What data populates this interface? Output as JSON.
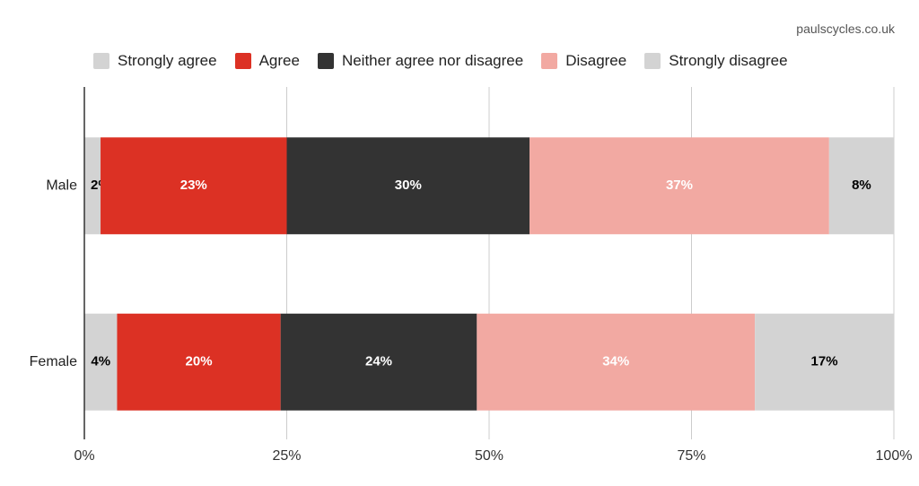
{
  "credit": "paulscycles.co.uk",
  "chart_data": {
    "type": "bar",
    "orientation": "horizontal",
    "stacked": "percent",
    "categories": [
      "Male",
      "Female"
    ],
    "series": [
      {
        "name": "Strongly agree",
        "color": "#d3d3d3",
        "label_color": "#000000",
        "values": [
          2,
          4
        ],
        "labels": [
          "2%",
          "4%"
        ]
      },
      {
        "name": "Agree",
        "color": "#dc3124",
        "label_color": "#ffffff",
        "values": [
          23,
          20
        ],
        "labels": [
          "23%",
          "20%"
        ]
      },
      {
        "name": "Neither agree nor disagree",
        "color": "#333333",
        "label_color": "#ffffff",
        "values": [
          30,
          24
        ],
        "labels": [
          "30%",
          "24%"
        ]
      },
      {
        "name": "Disagree",
        "color": "#f2a9a2",
        "label_color": "#ffffff",
        "values": [
          37,
          34
        ],
        "labels": [
          "37%",
          "34%"
        ]
      },
      {
        "name": "Strongly disagree",
        "color": "#d3d3d3",
        "label_color": "#000000",
        "values": [
          8,
          17
        ],
        "labels": [
          "8%",
          "17%"
        ]
      }
    ],
    "x_ticks": [
      0,
      25,
      50,
      75,
      100
    ],
    "x_tick_labels": [
      "0%",
      "25%",
      "50%",
      "75%",
      "100%"
    ],
    "xlim": [
      0,
      100
    ],
    "grid": true,
    "legend": "top"
  }
}
